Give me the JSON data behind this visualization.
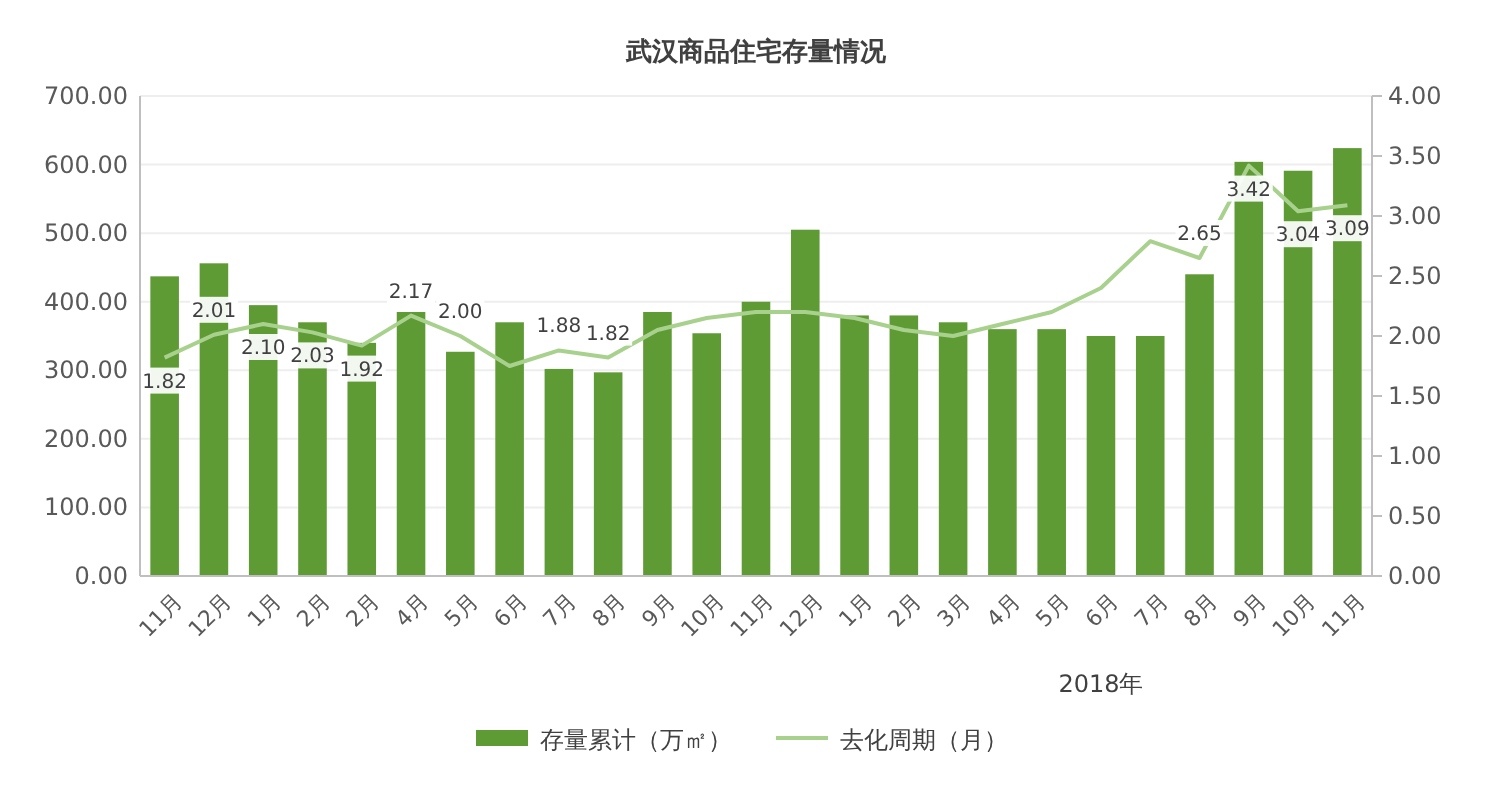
{
  "chart_data": {
    "type": "bar",
    "title": "武汉商品住宅存量情况",
    "categories": [
      "11月",
      "12月",
      "1月",
      "2月",
      "2月",
      "4月",
      "5月",
      "6月",
      "7月",
      "8月",
      "9月",
      "10月",
      "11月",
      "12月",
      "1月",
      "2月",
      "3月",
      "4月",
      "5月",
      "6月",
      "7月",
      "8月",
      "9月",
      "10月",
      "11月"
    ],
    "series": [
      {
        "name": "存量累计（万㎡）",
        "color": "#5f9b35",
        "values": [
          437,
          456,
          395,
          370,
          340,
          385,
          327,
          370,
          302,
          297,
          385,
          354,
          400,
          505,
          380,
          380,
          370,
          360,
          360,
          350,
          350,
          440,
          604,
          591,
          624
        ]
      },
      {
        "name": "去化周期（月）",
        "type": "line",
        "axis": "y2",
        "color": "#a9d18e",
        "values": [
          1.82,
          2.01,
          2.1,
          2.03,
          1.92,
          2.17,
          2.0,
          1.75,
          1.88,
          1.82,
          2.05,
          2.15,
          2.2,
          2.2,
          2.15,
          2.05,
          2.0,
          2.1,
          2.2,
          2.4,
          2.79,
          2.65,
          3.42,
          3.04,
          3.09
        ],
        "value_labels": [
          "1.82",
          "2.01",
          "2.10",
          "2.03",
          "1.92",
          "2.17",
          "2.00",
          null,
          "1.88",
          "1.82",
          null,
          null,
          null,
          null,
          null,
          null,
          null,
          null,
          null,
          null,
          null,
          "2.65",
          "3.42",
          "3.04",
          "3.09"
        ]
      }
    ],
    "ylim": [
      0,
      700
    ],
    "yticks": [
      {
        "value": 0,
        "label": "0.00"
      },
      {
        "value": 100,
        "label": "100.00"
      },
      {
        "value": 200,
        "label": "200.00"
      },
      {
        "value": 300,
        "label": "300.00"
      },
      {
        "value": 400,
        "label": "400.00"
      },
      {
        "value": 500,
        "label": "500.00"
      },
      {
        "value": 600,
        "label": "600.00"
      },
      {
        "value": 700,
        "label": "700.00"
      }
    ],
    "y2lim": [
      0,
      4
    ],
    "y2ticks": [
      {
        "value": 0,
        "label": "0.00"
      },
      {
        "value": 0.5,
        "label": "0.50"
      },
      {
        "value": 1,
        "label": "1.00"
      },
      {
        "value": 1.5,
        "label": "1.50"
      },
      {
        "value": 2,
        "label": "2.00"
      },
      {
        "value": 2.5,
        "label": "2.50"
      },
      {
        "value": 3,
        "label": "3.00"
      },
      {
        "value": 3.5,
        "label": "3.50"
      },
      {
        "value": 4,
        "label": "4.00"
      }
    ],
    "annotations": [
      "2018年"
    ],
    "grid": "y",
    "legend": "bottom",
    "marker": "none",
    "line_style": "solid"
  }
}
